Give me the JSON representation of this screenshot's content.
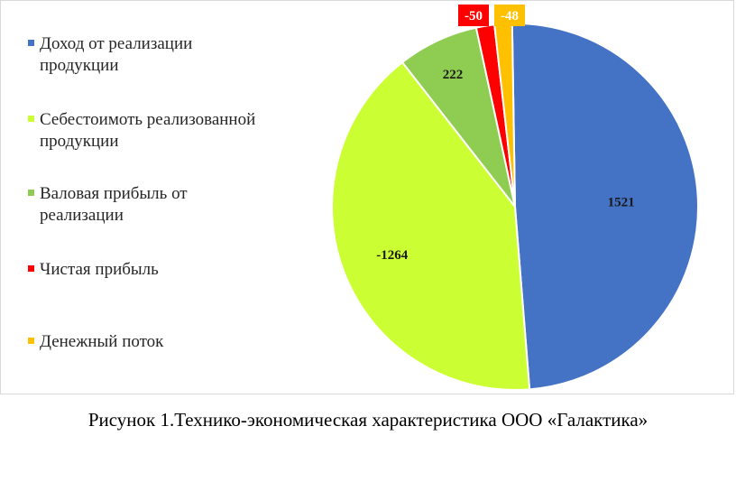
{
  "chart_data": {
    "type": "pie",
    "categories": [
      "Доход от реализации\nпродукции",
      "Себестоимоть реализованной\nпродукции",
      "Валовая прибыль от\nреализации",
      "Чистая прибыль",
      "Денежный поток"
    ],
    "values": [
      1521,
      -1264,
      222,
      -50,
      -48
    ],
    "data_labels": [
      "1521",
      "-1264",
      "222",
      "-50",
      "-48"
    ],
    "colors": [
      "#4472c4",
      "#ccff33",
      "#8fcd52",
      "#ff0000",
      "#ffc000"
    ],
    "legend_position": "left"
  },
  "caption": "Рисунок 1.Технико-экономическая характеристика ООО «Галактика»"
}
